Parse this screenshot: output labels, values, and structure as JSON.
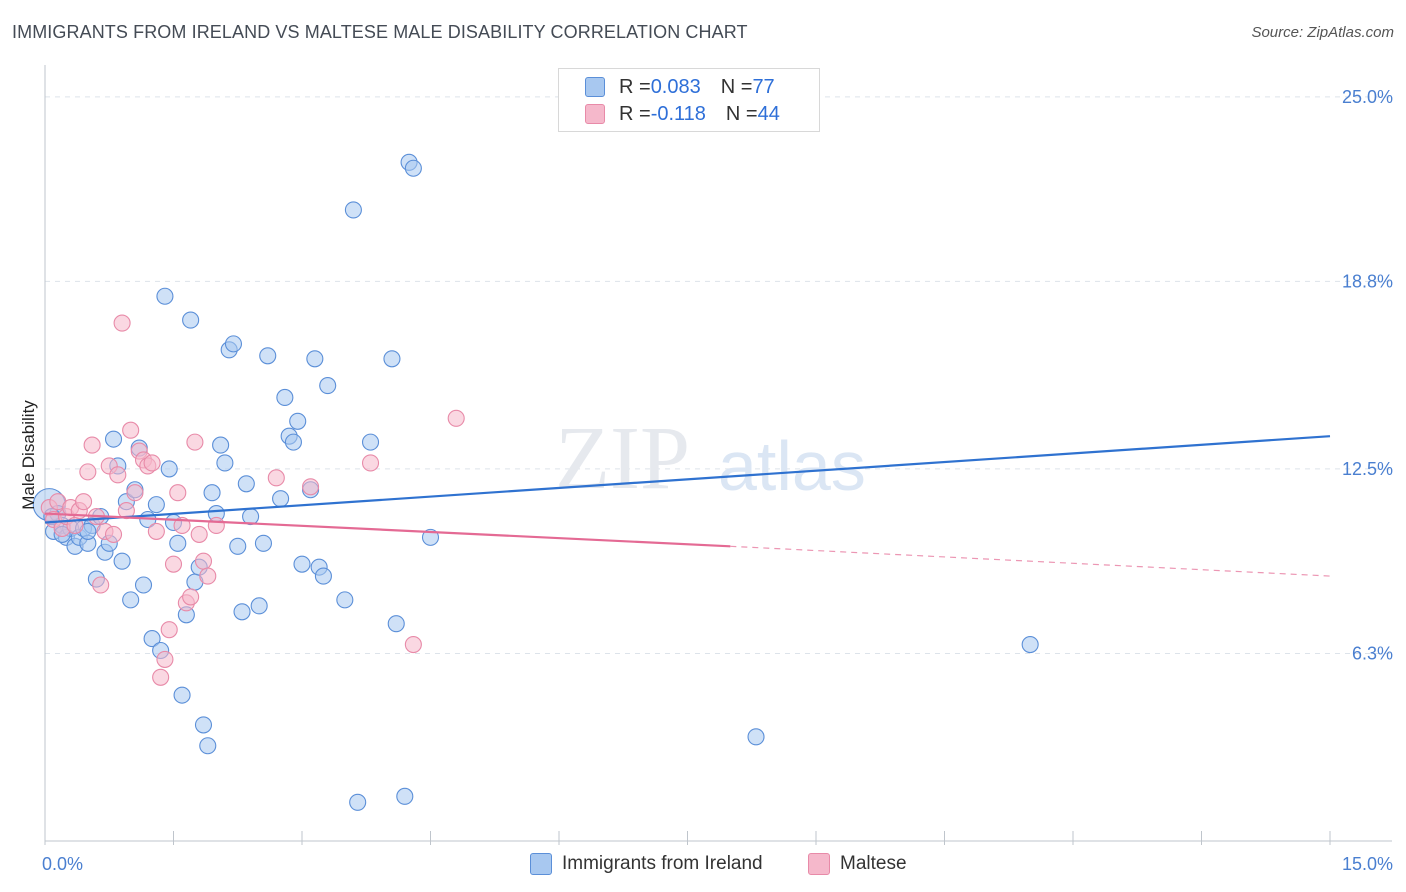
{
  "header": {
    "title": "IMMIGRANTS FROM IRELAND VS MALTESE MALE DISABILITY CORRELATION CHART",
    "source": "Source: ZipAtlas.com"
  },
  "legend": {
    "rows": [
      {
        "r_label": "R = ",
        "r_value": "0.083",
        "n_label": "N = ",
        "n_value": "77"
      },
      {
        "r_label": "R = ",
        "r_value": "-0.118",
        "n_label": "N = ",
        "n_value": "44"
      }
    ]
  },
  "bottom_legend": {
    "items": [
      {
        "label": "Immigrants from Ireland"
      },
      {
        "label": "Maltese"
      }
    ]
  },
  "watermark": {
    "zip": "ZIP",
    "atlas": "atlas"
  },
  "colors": {
    "blue_fill": "#a8c8f0",
    "blue_stroke": "#5b8fd8",
    "blue_line": "#2f72d0",
    "pink_fill": "#f5b8cb",
    "pink_stroke": "#e88aa8",
    "pink_line": "#e46a94",
    "grid": "#dde3ea",
    "tick_label": "#4a7fd0"
  },
  "chart_data": {
    "type": "scatter",
    "title": "IMMIGRANTS FROM IRELAND VS MALTESE MALE DISABILITY CORRELATION CHART",
    "xlabel": "",
    "ylabel": "Male Disability",
    "xlim": [
      0,
      15
    ],
    "ylim": [
      0,
      25.8
    ],
    "x_tick_labels": [
      "0.0%",
      "15.0%"
    ],
    "y_ticks": [
      6.3,
      12.5,
      18.8,
      25.0
    ],
    "y_tick_labels": [
      "6.3%",
      "12.5%",
      "18.8%",
      "25.0%"
    ],
    "grid": true,
    "legend_position": "top-center",
    "series": [
      {
        "name": "Immigrants from Ireland",
        "r": 0.083,
        "n": 77,
        "trend": {
          "x": [
            0,
            15
          ],
          "y": [
            10.7,
            13.6
          ]
        },
        "points": [
          [
            0.05,
            11.3
          ],
          [
            0.1,
            10.4
          ],
          [
            0.15,
            11.0
          ],
          [
            0.2,
            10.6
          ],
          [
            0.25,
            10.2
          ],
          [
            0.3,
            10.5
          ],
          [
            0.35,
            9.9
          ],
          [
            0.4,
            10.2
          ],
          [
            0.45,
            10.5
          ],
          [
            0.5,
            10.0
          ],
          [
            0.55,
            10.6
          ],
          [
            0.6,
            8.8
          ],
          [
            0.65,
            10.9
          ],
          [
            0.7,
            9.7
          ],
          [
            0.75,
            10.0
          ],
          [
            0.8,
            13.5
          ],
          [
            0.85,
            12.6
          ],
          [
            0.9,
            9.4
          ],
          [
            0.95,
            11.4
          ],
          [
            1.0,
            8.1
          ],
          [
            1.05,
            11.8
          ],
          [
            1.1,
            13.2
          ],
          [
            1.15,
            8.6
          ],
          [
            1.2,
            10.8
          ],
          [
            1.25,
            6.8
          ],
          [
            1.3,
            11.3
          ],
          [
            1.35,
            6.4
          ],
          [
            1.4,
            18.3
          ],
          [
            1.45,
            12.5
          ],
          [
            1.5,
            10.7
          ],
          [
            1.55,
            10.0
          ],
          [
            1.6,
            4.9
          ],
          [
            1.65,
            7.6
          ],
          [
            1.7,
            17.5
          ],
          [
            1.75,
            8.7
          ],
          [
            1.8,
            9.2
          ],
          [
            1.85,
            3.9
          ],
          [
            1.9,
            3.2
          ],
          [
            1.95,
            11.7
          ],
          [
            2.0,
            11.0
          ],
          [
            2.05,
            13.3
          ],
          [
            2.1,
            12.7
          ],
          [
            2.15,
            16.5
          ],
          [
            2.2,
            16.7
          ],
          [
            2.25,
            9.9
          ],
          [
            2.3,
            7.7
          ],
          [
            2.35,
            12.0
          ],
          [
            2.4,
            10.9
          ],
          [
            2.5,
            7.9
          ],
          [
            2.55,
            10.0
          ],
          [
            2.6,
            16.3
          ],
          [
            2.75,
            11.5
          ],
          [
            2.8,
            14.9
          ],
          [
            2.85,
            13.6
          ],
          [
            2.9,
            13.4
          ],
          [
            2.95,
            14.1
          ],
          [
            3.0,
            9.3
          ],
          [
            3.1,
            11.8
          ],
          [
            3.15,
            16.2
          ],
          [
            3.2,
            9.2
          ],
          [
            3.25,
            8.9
          ],
          [
            3.3,
            15.3
          ],
          [
            3.5,
            8.1
          ],
          [
            3.6,
            21.2
          ],
          [
            3.65,
            1.3
          ],
          [
            3.8,
            13.4
          ],
          [
            4.05,
            16.2
          ],
          [
            4.1,
            7.3
          ],
          [
            4.2,
            1.5
          ],
          [
            4.25,
            22.8
          ],
          [
            4.3,
            22.6
          ],
          [
            4.5,
            10.2
          ],
          [
            8.3,
            3.5
          ],
          [
            11.5,
            6.6
          ],
          [
            0.08,
            10.9
          ],
          [
            0.2,
            10.3
          ],
          [
            0.5,
            10.4
          ]
        ]
      },
      {
        "name": "Maltese",
        "r": -0.118,
        "n": 44,
        "trend": {
          "x": [
            0,
            8.0
          ],
          "y": [
            11.0,
            9.9
          ]
        },
        "trend_dashed": {
          "x": [
            8.0,
            15
          ],
          "y": [
            9.9,
            8.9
          ]
        },
        "points": [
          [
            0.05,
            11.2
          ],
          [
            0.1,
            10.8
          ],
          [
            0.15,
            11.4
          ],
          [
            0.2,
            10.5
          ],
          [
            0.25,
            10.9
          ],
          [
            0.3,
            11.2
          ],
          [
            0.35,
            10.6
          ],
          [
            0.4,
            11.1
          ],
          [
            0.45,
            11.4
          ],
          [
            0.5,
            12.4
          ],
          [
            0.55,
            13.3
          ],
          [
            0.6,
            10.9
          ],
          [
            0.65,
            8.6
          ],
          [
            0.7,
            10.4
          ],
          [
            0.75,
            12.6
          ],
          [
            0.8,
            10.3
          ],
          [
            0.85,
            12.3
          ],
          [
            0.9,
            17.4
          ],
          [
            0.95,
            11.1
          ],
          [
            1.0,
            13.8
          ],
          [
            1.05,
            11.7
          ],
          [
            1.1,
            13.1
          ],
          [
            1.15,
            12.8
          ],
          [
            1.2,
            12.6
          ],
          [
            1.25,
            12.7
          ],
          [
            1.3,
            10.4
          ],
          [
            1.35,
            5.5
          ],
          [
            1.4,
            6.1
          ],
          [
            1.45,
            7.1
          ],
          [
            1.5,
            9.3
          ],
          [
            1.55,
            11.7
          ],
          [
            1.6,
            10.6
          ],
          [
            1.65,
            8.0
          ],
          [
            1.7,
            8.2
          ],
          [
            1.75,
            13.4
          ],
          [
            1.8,
            10.3
          ],
          [
            1.85,
            9.4
          ],
          [
            1.9,
            8.9
          ],
          [
            2.0,
            10.6
          ],
          [
            2.7,
            12.2
          ],
          [
            3.1,
            11.9
          ],
          [
            3.8,
            12.7
          ],
          [
            4.3,
            6.6
          ],
          [
            4.8,
            14.2
          ]
        ]
      }
    ]
  }
}
